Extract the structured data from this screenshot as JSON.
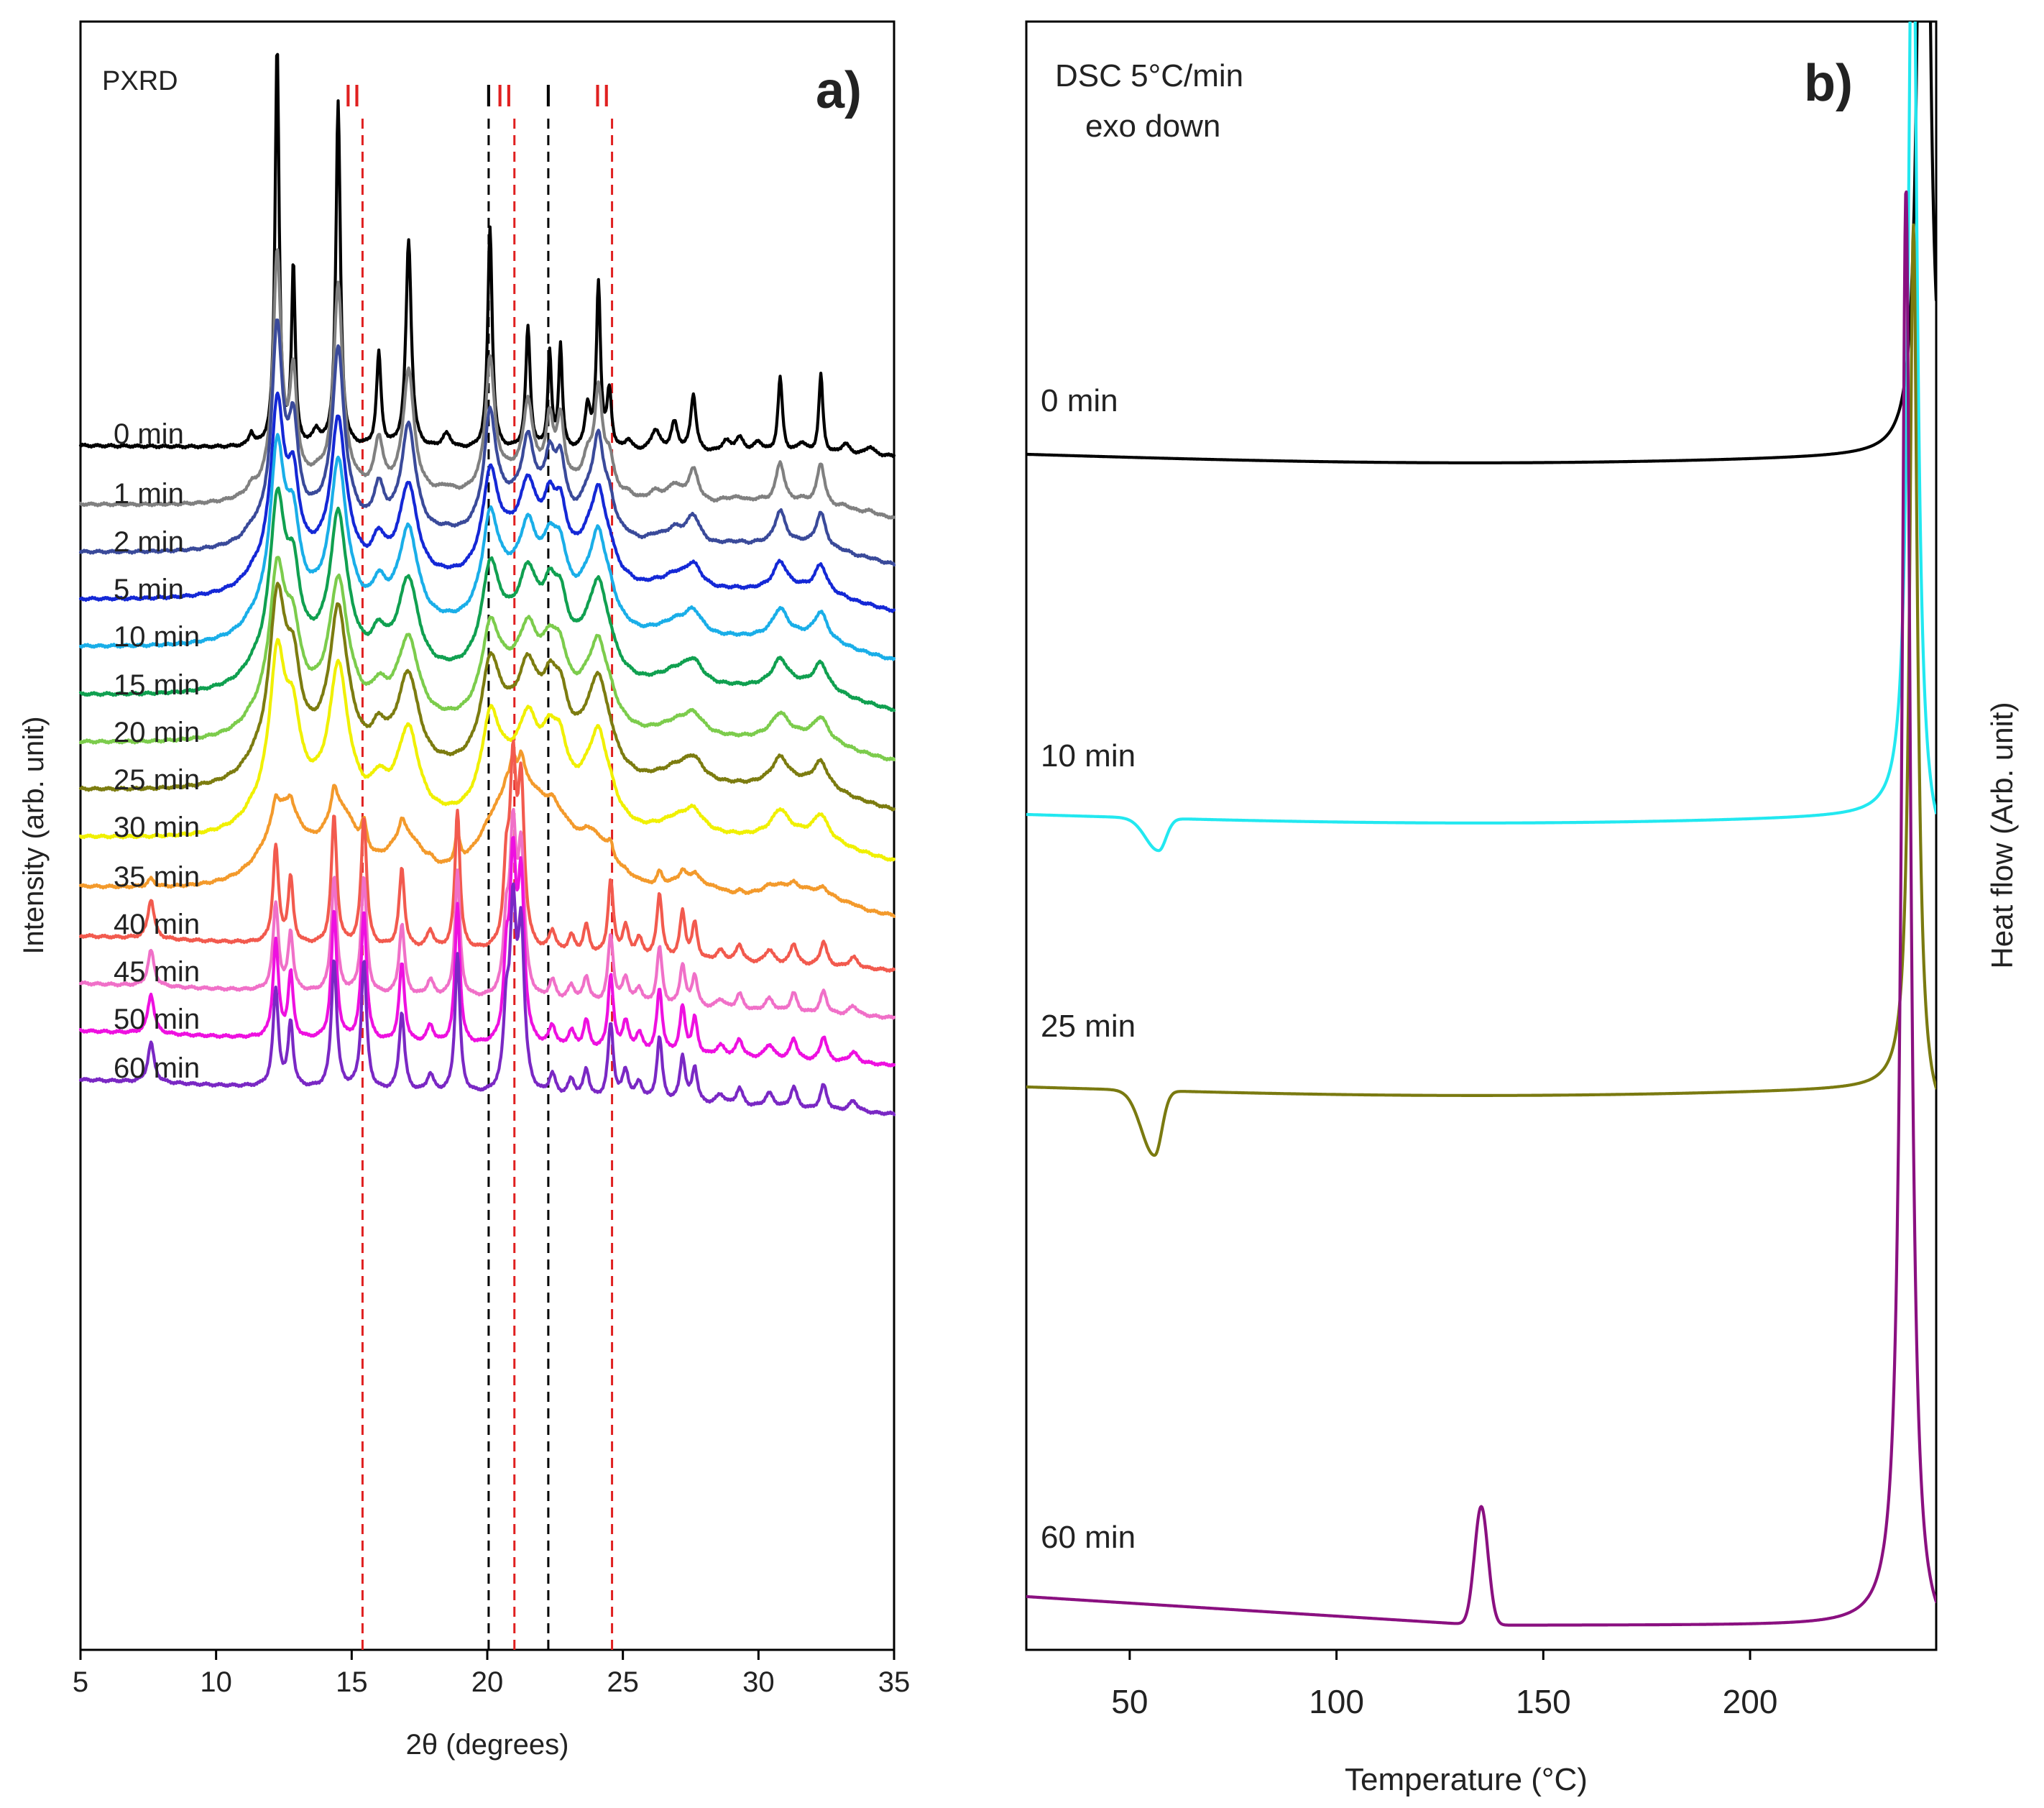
{
  "chart_data": [
    {
      "type": "line",
      "panel_label": "a)",
      "annotation": "PXRD",
      "xlabel": "2θ (degrees)",
      "ylabel": "Intensity (arb. unit)",
      "xlim": [
        5,
        35
      ],
      "xticks": [
        "5",
        "10",
        "15",
        "20",
        "25",
        "30",
        "35"
      ],
      "grid": false,
      "reference_lines": [
        {
          "x": 15.4,
          "label": "II",
          "color": "#e02020"
        },
        {
          "x": 20.05,
          "label": "I",
          "color": "#000000"
        },
        {
          "x": 21.0,
          "label": "II",
          "color": "#e02020"
        },
        {
          "x": 22.25,
          "label": "I",
          "color": "#000000"
        },
        {
          "x": 24.6,
          "label": "II",
          "color": "#e02020"
        }
      ],
      "series": [
        {
          "name": "0 min",
          "color": "#000000"
        },
        {
          "name": "1 min",
          "color": "#808080"
        },
        {
          "name": "2 min",
          "color": "#3a4a9a"
        },
        {
          "name": "5 min",
          "color": "#1428d6"
        },
        {
          "name": "10 min",
          "color": "#1aaee8"
        },
        {
          "name": "15 min",
          "color": "#10a050"
        },
        {
          "name": "20 min",
          "color": "#7ccc4c"
        },
        {
          "name": "25 min",
          "color": "#7c7c10"
        },
        {
          "name": "30 min",
          "color": "#f0f000"
        },
        {
          "name": "35 min",
          "color": "#f39a2c"
        },
        {
          "name": "40 min",
          "color": "#f25a4e"
        },
        {
          "name": "45 min",
          "color": "#f070c8"
        },
        {
          "name": "50 min",
          "color": "#ee10e0"
        },
        {
          "name": "60 min",
          "color": "#7a28c4"
        }
      ]
    },
    {
      "type": "line",
      "panel_label": "b)",
      "annotation_line1": "DSC 5°C/min",
      "annotation_line2": "exo down",
      "xlabel": "Temperature (°C)",
      "ylabel": "Heat flow (Arb. unit)",
      "xlim": [
        25,
        245
      ],
      "xticks": [
        "50",
        "100",
        "150",
        "200"
      ],
      "grid": false,
      "series": [
        {
          "name": "0 min",
          "color": "#000000"
        },
        {
          "name": "10 min",
          "color": "#22e8f0"
        },
        {
          "name": "25 min",
          "color": "#7a7a10"
        },
        {
          "name": "60 min",
          "color": "#8a1080"
        }
      ]
    }
  ]
}
